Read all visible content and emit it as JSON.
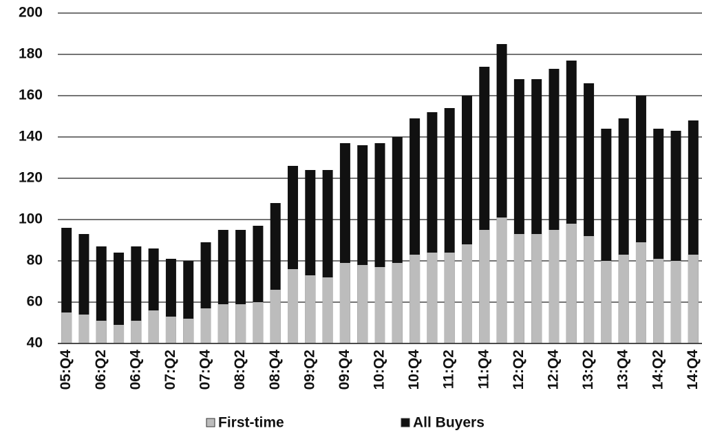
{
  "chart_data": {
    "type": "bar",
    "barmode": "overlay",
    "categories": [
      "05:Q4",
      null,
      "06:Q2",
      null,
      "06:Q4",
      null,
      "07:Q2",
      null,
      "07:Q4",
      null,
      "08:Q2",
      null,
      "08:Q4",
      null,
      "09:Q2",
      null,
      "09:Q4",
      null,
      "10:Q2",
      null,
      "10:Q4",
      null,
      "11:Q2",
      null,
      "11:Q4",
      null,
      "12:Q2",
      null,
      "12:Q4",
      null,
      "13:Q2",
      null,
      "13:Q4",
      null,
      "14:Q2",
      null,
      "14:Q4"
    ],
    "series": [
      {
        "name": "All Buyers",
        "color": "#111111",
        "values": [
          96,
          93,
          87,
          84,
          87,
          86,
          81,
          80,
          89,
          95,
          95,
          97,
          108,
          126,
          124,
          124,
          137,
          136,
          137,
          140,
          149,
          152,
          154,
          160,
          174,
          185,
          168,
          168,
          173,
          177,
          166,
          144,
          149,
          160,
          144,
          143,
          148
        ]
      },
      {
        "name": "First-time",
        "color": "#bcbcbc",
        "values": [
          55,
          54,
          51,
          49,
          51,
          56,
          53,
          52,
          57,
          59,
          59,
          60,
          66,
          76,
          73,
          72,
          79,
          78,
          77,
          79,
          83,
          84,
          84,
          88,
          95,
          101,
          93,
          93,
          95,
          98,
          92,
          80,
          83,
          89,
          81,
          80,
          83
        ]
      }
    ],
    "ylim": [
      40,
      200
    ],
    "yticks": [
      40,
      60,
      80,
      100,
      120,
      140,
      160,
      180,
      200
    ],
    "grid": true
  }
}
